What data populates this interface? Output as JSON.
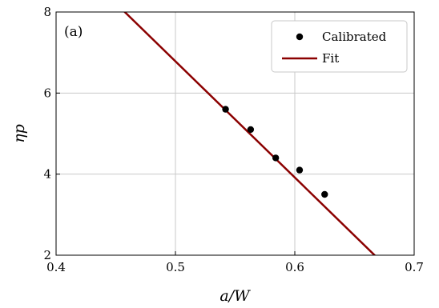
{
  "chart_data": {
    "type": "scatter",
    "panel_label": "(a)",
    "xlabel": "a/W",
    "ylabel": "ηp",
    "xlim": [
      0.4,
      0.7
    ],
    "ylim": [
      2,
      8
    ],
    "xticks": [
      0.4,
      0.5,
      0.6,
      0.7
    ],
    "yticks": [
      2,
      4,
      6,
      8
    ],
    "xtick_labels": [
      "0.4",
      "0.5",
      "0.6",
      "0.7"
    ],
    "ytick_labels": [
      "2",
      "4",
      "6",
      "8"
    ],
    "grid": true,
    "legend_position": "top-right",
    "series": [
      {
        "name": "Calibrated",
        "kind": "scatter",
        "color": "#000000",
        "x": [
          0.542,
          0.563,
          0.584,
          0.604,
          0.625
        ],
        "y": [
          5.6,
          5.1,
          4.4,
          4.1,
          3.5
        ]
      },
      {
        "name": "Fit",
        "kind": "line",
        "color": "#8b0000",
        "x": [
          0.4,
          0.7
        ],
        "y": [
          9.65,
          1.05
        ]
      }
    ]
  }
}
